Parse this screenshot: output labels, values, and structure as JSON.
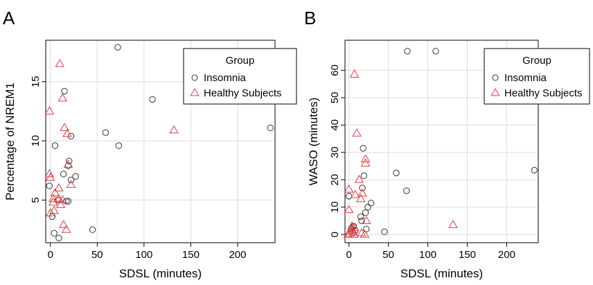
{
  "chart_data": [
    {
      "panel_label": "A",
      "type": "scatter",
      "xlabel": "SDSL (minutes)",
      "ylabel": "Percentage of NREM1",
      "xlim": [
        -5,
        240
      ],
      "ylim": [
        1.4,
        18.5
      ],
      "x_ticks": [
        0,
        50,
        100,
        150,
        200
      ],
      "y_ticks": [
        5,
        10,
        15
      ],
      "grid": true,
      "legend": {
        "title": "Group",
        "position": "top-right",
        "entries": [
          "Insomnia",
          "Healthy Subjects"
        ]
      },
      "series": [
        {
          "name": "Insomnia",
          "marker": "circle",
          "color": "#333333",
          "points": [
            [
              72,
              17.9
            ],
            [
              15,
              14.2
            ],
            [
              109,
              13.5
            ],
            [
              235,
              11.1
            ],
            [
              59,
              10.7
            ],
            [
              22,
              10.4
            ],
            [
              5,
              9.6
            ],
            [
              73,
              9.6
            ],
            [
              20,
              8.3
            ],
            [
              19,
              7.9
            ],
            [
              14,
              7.2
            ],
            [
              27,
              7.0
            ],
            [
              22,
              6.7
            ],
            [
              -1,
              6.2
            ],
            [
              17,
              4.9
            ],
            [
              19,
              4.9
            ],
            [
              8,
              5.0
            ],
            [
              2,
              3.6
            ],
            [
              45,
              2.5
            ],
            [
              4,
              2.2
            ],
            [
              9,
              1.8
            ]
          ]
        },
        {
          "name": "Healthy Subjects",
          "marker": "triangle",
          "color": "#e8383d",
          "points": [
            [
              10,
              16.5
            ],
            [
              13,
              13.6
            ],
            [
              -1,
              12.5
            ],
            [
              15,
              11.1
            ],
            [
              132,
              10.9
            ],
            [
              18,
              10.6
            ],
            [
              19,
              8.0
            ],
            [
              -1,
              7.2
            ],
            [
              0,
              6.9
            ],
            [
              22,
              6.3
            ],
            [
              9,
              6.0
            ],
            [
              5,
              5.6
            ],
            [
              3,
              5.1
            ],
            [
              9,
              5.1
            ],
            [
              13,
              5.0
            ],
            [
              3,
              4.8
            ],
            [
              11,
              4.6
            ],
            [
              4,
              4.1
            ],
            [
              0,
              3.9
            ],
            [
              14,
              2.9
            ],
            [
              17,
              2.5
            ]
          ]
        }
      ]
    },
    {
      "panel_label": "B",
      "type": "scatter",
      "xlabel": "SDSL (minutes)",
      "ylabel": "WASO (minutes)",
      "xlim": [
        -5,
        240
      ],
      "ylim": [
        -3,
        71
      ],
      "x_ticks": [
        0,
        50,
        100,
        150,
        200
      ],
      "y_ticks": [
        0,
        10,
        20,
        30,
        40,
        50,
        60
      ],
      "grid": true,
      "legend": {
        "title": "Group",
        "position": "top-right",
        "entries": [
          "Insomnia",
          "Healthy Subjects"
        ]
      },
      "series": [
        {
          "name": "Insomnia",
          "marker": "circle",
          "color": "#333333",
          "points": [
            [
              74,
              67
            ],
            [
              110,
              67
            ],
            [
              18,
              31.5
            ],
            [
              235,
              23.5
            ],
            [
              60,
              22.5
            ],
            [
              19,
              21.5
            ],
            [
              17,
              17
            ],
            [
              73,
              16
            ],
            [
              0,
              14
            ],
            [
              28,
              11.5
            ],
            [
              24,
              10
            ],
            [
              21,
              8
            ],
            [
              15,
              6.5
            ],
            [
              16,
              5
            ],
            [
              6,
              3
            ],
            [
              4,
              2.5
            ],
            [
              3,
              2
            ],
            [
              8,
              1.5
            ],
            [
              22,
              2
            ],
            [
              45,
              1
            ],
            [
              5,
              0.5
            ]
          ]
        },
        {
          "name": "Healthy Subjects",
          "marker": "triangle",
          "color": "#e8383d",
          "points": [
            [
              7,
              58.5
            ],
            [
              10,
              37
            ],
            [
              21,
              27.5
            ],
            [
              21,
              26
            ],
            [
              13,
              20
            ],
            [
              0,
              16.5
            ],
            [
              17,
              15
            ],
            [
              8,
              14.5
            ],
            [
              15,
              13
            ],
            [
              0,
              9
            ],
            [
              22,
              5
            ],
            [
              132,
              3.5
            ],
            [
              4,
              3
            ],
            [
              7,
              2.5
            ],
            [
              3,
              1.5
            ],
            [
              5,
              1
            ],
            [
              16,
              0.5
            ],
            [
              1,
              0.5
            ],
            [
              -1,
              0
            ],
            [
              6,
              0
            ],
            [
              20,
              0
            ]
          ]
        }
      ]
    }
  ]
}
